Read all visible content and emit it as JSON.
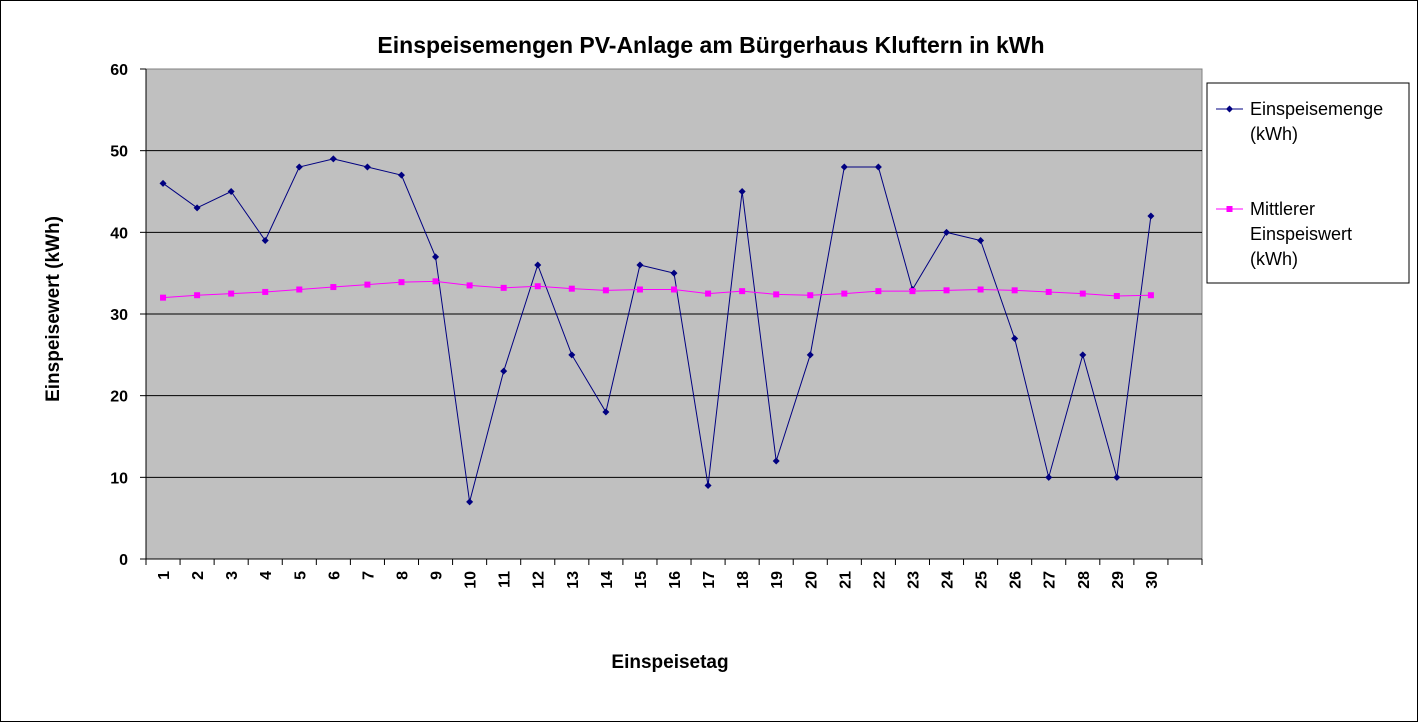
{
  "chart_data": {
    "type": "line",
    "title": "Einspeisemengen PV-Anlage am Bürgerhaus Kluftern in kWh",
    "xlabel": "Einspeisetag",
    "ylabel": "Einspeisewert (kWh)",
    "ylim": [
      0,
      60
    ],
    "yticks": [
      0,
      10,
      20,
      30,
      40,
      50,
      60
    ],
    "grid": true,
    "legend_position": "right",
    "plot_background": "#C0C0C0",
    "categories": [
      "1",
      "2",
      "3",
      "4",
      "5",
      "6",
      "7",
      "8",
      "9",
      "10",
      "11",
      "12",
      "13",
      "14",
      "15",
      "16",
      "17",
      "18",
      "19",
      "20",
      "21",
      "22",
      "23",
      "24",
      "25",
      "26",
      "27",
      "28",
      "29",
      "30"
    ],
    "series": [
      {
        "name": "Einspeisemenge (kWh)",
        "legend_lines": [
          "Einspeisemenge",
          "(kWh)"
        ],
        "color": "#000080",
        "marker": "diamond",
        "values": [
          46,
          43,
          45,
          39,
          48,
          49,
          48,
          47,
          37,
          7,
          23,
          36,
          25,
          18,
          36,
          35,
          9,
          45,
          12,
          25,
          48,
          48,
          33,
          40,
          39,
          27,
          10,
          25,
          10,
          42
        ]
      },
      {
        "name": "Mittlerer Einspeiswert (kWh)",
        "legend_lines": [
          "Mittlerer",
          "Einspeiswert",
          "(kWh)"
        ],
        "color": "#FF00FF",
        "marker": "square",
        "values": [
          32.0,
          32.3,
          32.5,
          32.7,
          33.0,
          33.3,
          33.6,
          33.9,
          34.0,
          33.5,
          33.2,
          33.4,
          33.1,
          32.9,
          33.0,
          33.0,
          32.5,
          32.8,
          32.4,
          32.3,
          32.5,
          32.8,
          32.8,
          32.9,
          33.0,
          32.9,
          32.7,
          32.5,
          32.2,
          32.3
        ]
      }
    ]
  }
}
